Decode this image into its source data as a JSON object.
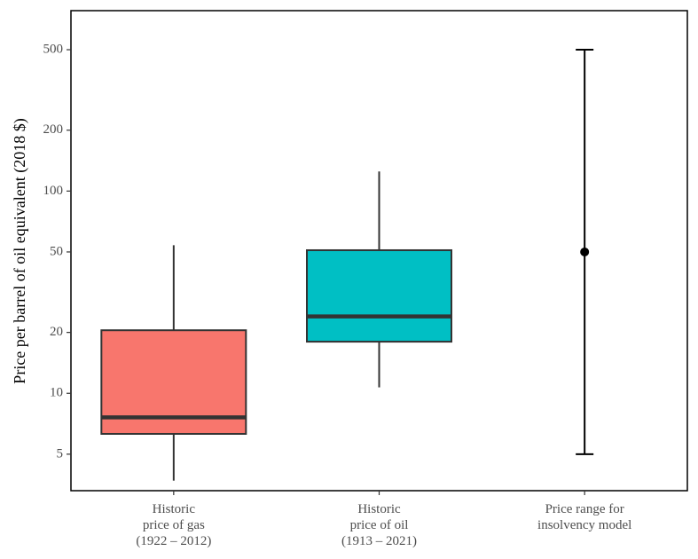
{
  "chart_data": {
    "type": "boxplot",
    "ylabel": "Price per barrel of oil equivalent (2018 $)",
    "xlabel": "",
    "y_scale": "log10",
    "ylim": [
      3.3,
      780
    ],
    "y_ticks": [
      5,
      10,
      20,
      50,
      100,
      200,
      500
    ],
    "y_tick_labels": [
      "5",
      "10",
      "20",
      "50",
      "100",
      "200",
      "500"
    ],
    "grid": false,
    "categories": [
      {
        "label_lines": [
          "Historic",
          "price of gas",
          "(1922 – 2012)"
        ],
        "kind": "box",
        "whisker_low": 3.7,
        "q1": 6.3,
        "median": 7.6,
        "q3": 20.5,
        "whisker_high": 54,
        "color": "#f8766d"
      },
      {
        "label_lines": [
          "Historic",
          "price of oil",
          "(1913 – 2021)"
        ],
        "kind": "box",
        "whisker_low": 10.7,
        "q1": 18,
        "median": 24,
        "q3": 51,
        "whisker_high": 125,
        "color": "#00bfc4"
      },
      {
        "label_lines": [
          "Price range for",
          "insolvency model"
        ],
        "kind": "range",
        "low": 5,
        "point": 50,
        "high": 500,
        "color": "#000000"
      }
    ]
  }
}
